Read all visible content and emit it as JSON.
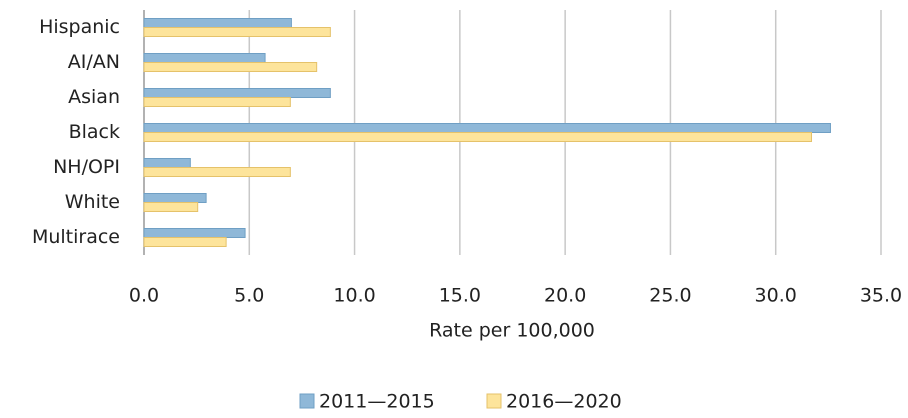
{
  "chart_data": {
    "type": "bar",
    "orientation": "horizontal",
    "categories": [
      "Hispanic",
      "AI/AN",
      "Asian",
      "Black",
      "NH/OPI",
      "White",
      "Multirace"
    ],
    "series": [
      {
        "name": "2011—2015",
        "color": "#8fb8d8",
        "values": [
          7.0,
          5.75,
          8.85,
          32.6,
          2.2,
          2.95,
          4.8
        ]
      },
      {
        "name": "2016—2020",
        "color": "#fde49b",
        "values": [
          8.85,
          8.2,
          6.95,
          31.7,
          6.95,
          2.55,
          3.9
        ]
      }
    ],
    "xlabel": "Rate per 100,000",
    "xlim": [
      0,
      35
    ],
    "xticks": [
      {
        "value": 0,
        "label": "0.0"
      },
      {
        "value": 5,
        "label": "5.0"
      },
      {
        "value": 10,
        "label": "10.0"
      },
      {
        "value": 15,
        "label": "15.0"
      },
      {
        "value": 20,
        "label": "20.0"
      },
      {
        "value": 25,
        "label": "25.0"
      },
      {
        "value": 30,
        "label": "30.0"
      },
      {
        "value": 35,
        "label": "35.0"
      }
    ],
    "grid": true,
    "legend": "bottom"
  }
}
